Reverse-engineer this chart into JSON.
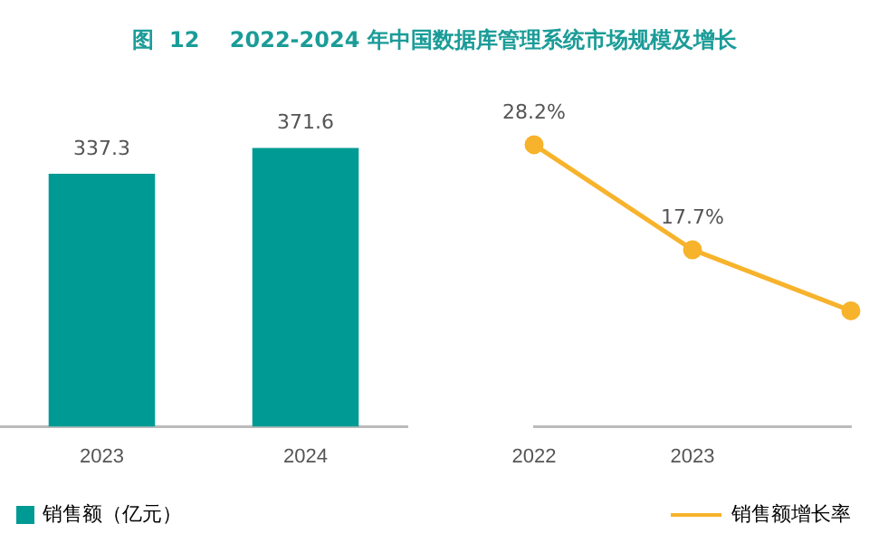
{
  "chart_data": [
    {
      "type": "bar",
      "title": "图  12    2022-2024 年中国数据库管理系统市场规模及增长",
      "categories": [
        "2023",
        "2024"
      ],
      "series": [
        {
          "name": "销售额（亿元）",
          "color": "#009a94",
          "values": [
            337.3,
            371.6
          ]
        }
      ],
      "data_labels": true,
      "legend": "bottom left",
      "grid": false,
      "tick_labels": "x"
    },
    {
      "type": "line",
      "categories": [
        "2022",
        "2023",
        null
      ],
      "series": [
        {
          "name": "销售额增长率",
          "color": "#f7b32b",
          "values": [
            28.2,
            17.7,
            11.6
          ],
          "value_labels": [
            "28.2%",
            "17.7%",
            null
          ]
        }
      ],
      "marker": "circle",
      "line_style": "solid",
      "legend": "bottom right",
      "grid": false,
      "tick_labels": "x"
    }
  ]
}
